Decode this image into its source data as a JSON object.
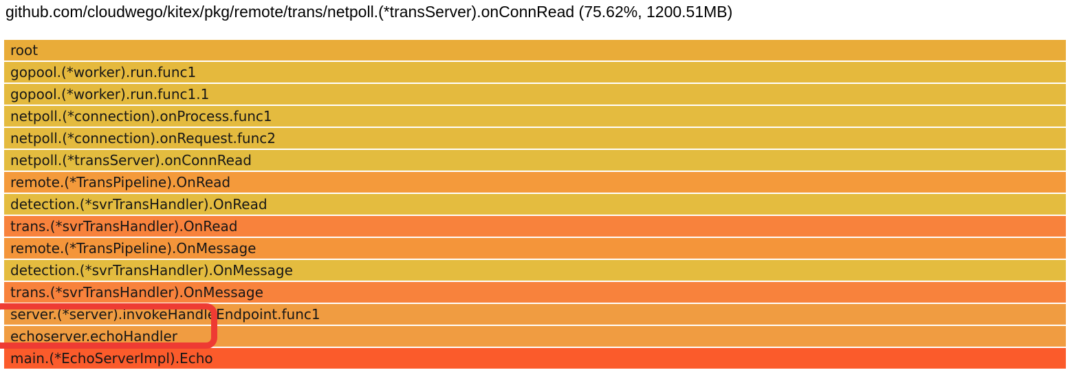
{
  "header": {
    "title": "github.com/cloudwego/kitex/pkg/remote/trans/netpoll.(*transServer).onConnRead (75.62%, 1200.51MB)"
  },
  "chart_data": {
    "type": "bar",
    "variant": "flamegraph",
    "orientation": "horizontal-stack",
    "title": "github.com/cloudwego/kitex/pkg/remote/trans/netpoll.(*transServer).onConnRead (75.62%, 1200.51MB)",
    "selected_frame": {
      "name": "netpoll.(*transServer).onConnRead",
      "percent": 75.62,
      "size": "1200.51MB"
    },
    "frames": [
      {
        "label": "root",
        "width_pct": 100,
        "color": "#E9AC39"
      },
      {
        "label": "gopool.(*worker).run.func1",
        "width_pct": 100,
        "color": "#E5B93D"
      },
      {
        "label": "gopool.(*worker).run.func1.1",
        "width_pct": 100,
        "color": "#E4BA3E"
      },
      {
        "label": "netpoll.(*connection).onProcess.func1",
        "width_pct": 100,
        "color": "#E4BB3F"
      },
      {
        "label": "netpoll.(*connection).onRequest.func2",
        "width_pct": 100,
        "color": "#E4BA3E"
      },
      {
        "label": "netpoll.(*transServer).onConnRead",
        "width_pct": 100,
        "color": "#E3BC3F"
      },
      {
        "label": "remote.(*TransPipeline).OnRead",
        "width_pct": 100,
        "color": "#F49A3B"
      },
      {
        "label": "detection.(*svrTransHandler).OnRead",
        "width_pct": 100,
        "color": "#E4BC3F"
      },
      {
        "label": "trans.(*svrTransHandler).OnRead",
        "width_pct": 100,
        "color": "#F8823C"
      },
      {
        "label": "remote.(*TransPipeline).OnMessage",
        "width_pct": 100,
        "color": "#F4953A"
      },
      {
        "label": "detection.(*svrTransHandler).OnMessage",
        "width_pct": 100,
        "color": "#E4BC3F"
      },
      {
        "label": "trans.(*svrTransHandler).OnMessage",
        "width_pct": 100,
        "color": "#F8823C"
      },
      {
        "label": "server.(*server).invokeHandleEndpoint.func1",
        "width_pct": 100,
        "color": "#F09C41"
      },
      {
        "label": "echoserver.echoHandler",
        "width_pct": 100,
        "color": "#F09C41"
      },
      {
        "label": "main.(*EchoServerImpl).Echo",
        "width_pct": 100,
        "color": "#FB5B2B"
      }
    ]
  },
  "annotation": {
    "color": "#EE3B33"
  }
}
